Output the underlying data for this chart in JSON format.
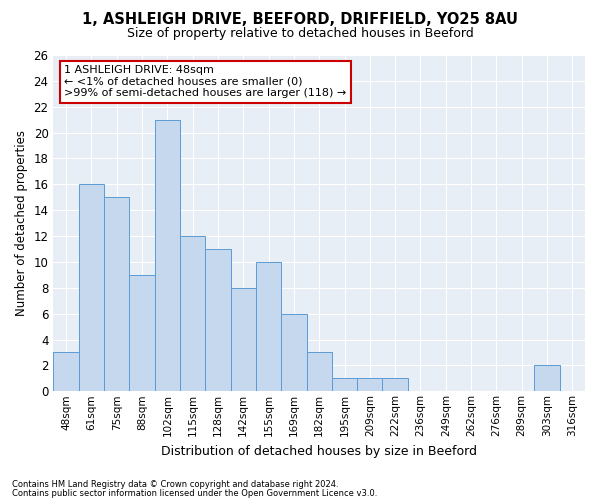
{
  "title1": "1, ASHLEIGH DRIVE, BEEFORD, DRIFFIELD, YO25 8AU",
  "title2": "Size of property relative to detached houses in Beeford",
  "xlabel": "Distribution of detached houses by size in Beeford",
  "ylabel": "Number of detached properties",
  "categories": [
    "48sqm",
    "61sqm",
    "75sqm",
    "88sqm",
    "102sqm",
    "115sqm",
    "128sqm",
    "142sqm",
    "155sqm",
    "169sqm",
    "182sqm",
    "195sqm",
    "209sqm",
    "222sqm",
    "236sqm",
    "249sqm",
    "262sqm",
    "276sqm",
    "289sqm",
    "303sqm",
    "316sqm"
  ],
  "values": [
    3,
    16,
    15,
    9,
    21,
    12,
    11,
    8,
    10,
    6,
    3,
    1,
    1,
    1,
    0,
    0,
    0,
    0,
    0,
    2,
    0
  ],
  "bar_color": "#c5d8ed",
  "bar_edge_color": "#5b9bd5",
  "background_color": "#e8eef5",
  "annotation_line1": "1 ASHLEIGH DRIVE: 48sqm",
  "annotation_line2": "← <1% of detached houses are smaller (0)",
  "annotation_line3": ">99% of semi-detached houses are larger (118) →",
  "annotation_box_color": "#ffffff",
  "annotation_box_edge": "#cc0000",
  "footer1": "Contains HM Land Registry data © Crown copyright and database right 2024.",
  "footer2": "Contains public sector information licensed under the Open Government Licence v3.0.",
  "ylim": [
    0,
    26
  ],
  "yticks": [
    0,
    2,
    4,
    6,
    8,
    10,
    12,
    14,
    16,
    18,
    20,
    22,
    24,
    26
  ]
}
